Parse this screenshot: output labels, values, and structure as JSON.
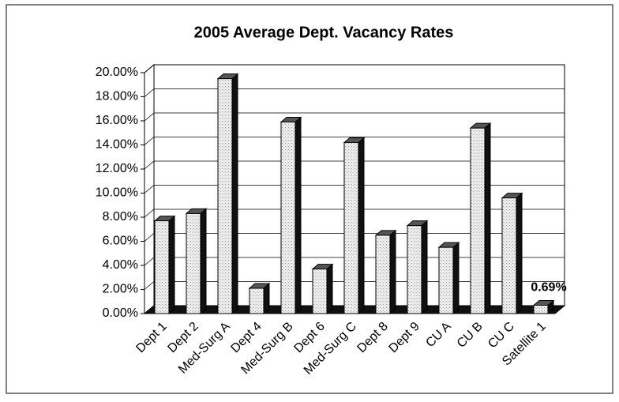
{
  "chart_data": {
    "type": "bar3d",
    "title": "2005 Average Dept. Vacancy Rates",
    "categories": [
      "Dept 1",
      "Dept 2",
      "Med-Surg A",
      "Dept 4",
      "Med-Surg B",
      "Dept 6",
      "Med-Surg C",
      "Dept 8",
      "Dept 9",
      "CU A",
      "CU B",
      "CU C",
      "Satellite 1"
    ],
    "values": [
      7.7,
      8.3,
      19.5,
      2.1,
      15.9,
      3.7,
      14.2,
      6.5,
      7.3,
      5.5,
      15.4,
      9.6,
      0.69
    ],
    "value_labels": [
      null,
      null,
      null,
      null,
      null,
      null,
      null,
      null,
      null,
      null,
      null,
      null,
      "0.69%"
    ],
    "color": "#e4e4e4",
    "ylim": [
      0,
      20
    ],
    "yticks": [
      {
        "value": 0,
        "label": "0.00%"
      },
      {
        "value": 2,
        "label": "2.00%"
      },
      {
        "value": 4,
        "label": "4.00%"
      },
      {
        "value": 6,
        "label": "6.00%"
      },
      {
        "value": 8,
        "label": "8.00%"
      },
      {
        "value": 10,
        "label": "10.00%"
      },
      {
        "value": 12,
        "label": "12.00%"
      },
      {
        "value": 14,
        "label": "14.00%"
      },
      {
        "value": 16,
        "label": "16.00%"
      },
      {
        "value": 18,
        "label": "18.00%"
      },
      {
        "value": 20,
        "label": "20.00%"
      }
    ],
    "grid": true
  }
}
